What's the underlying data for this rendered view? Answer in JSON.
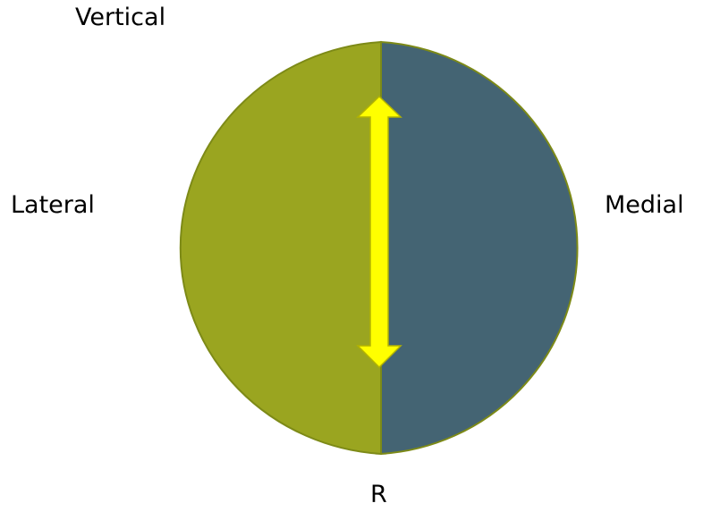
{
  "labels": {
    "top": "Vertical",
    "left": "Lateral",
    "right": "Medial",
    "bottom": "R"
  },
  "colors": {
    "lateral_half": "#9aa520",
    "medial_half": "#446473",
    "outline": "#7d8a17",
    "arrow_fill": "#ffff00",
    "arrow_stroke": "#b3b300",
    "text": "#000000"
  },
  "icons": {
    "arrow": "double-headed-vertical-arrow"
  }
}
